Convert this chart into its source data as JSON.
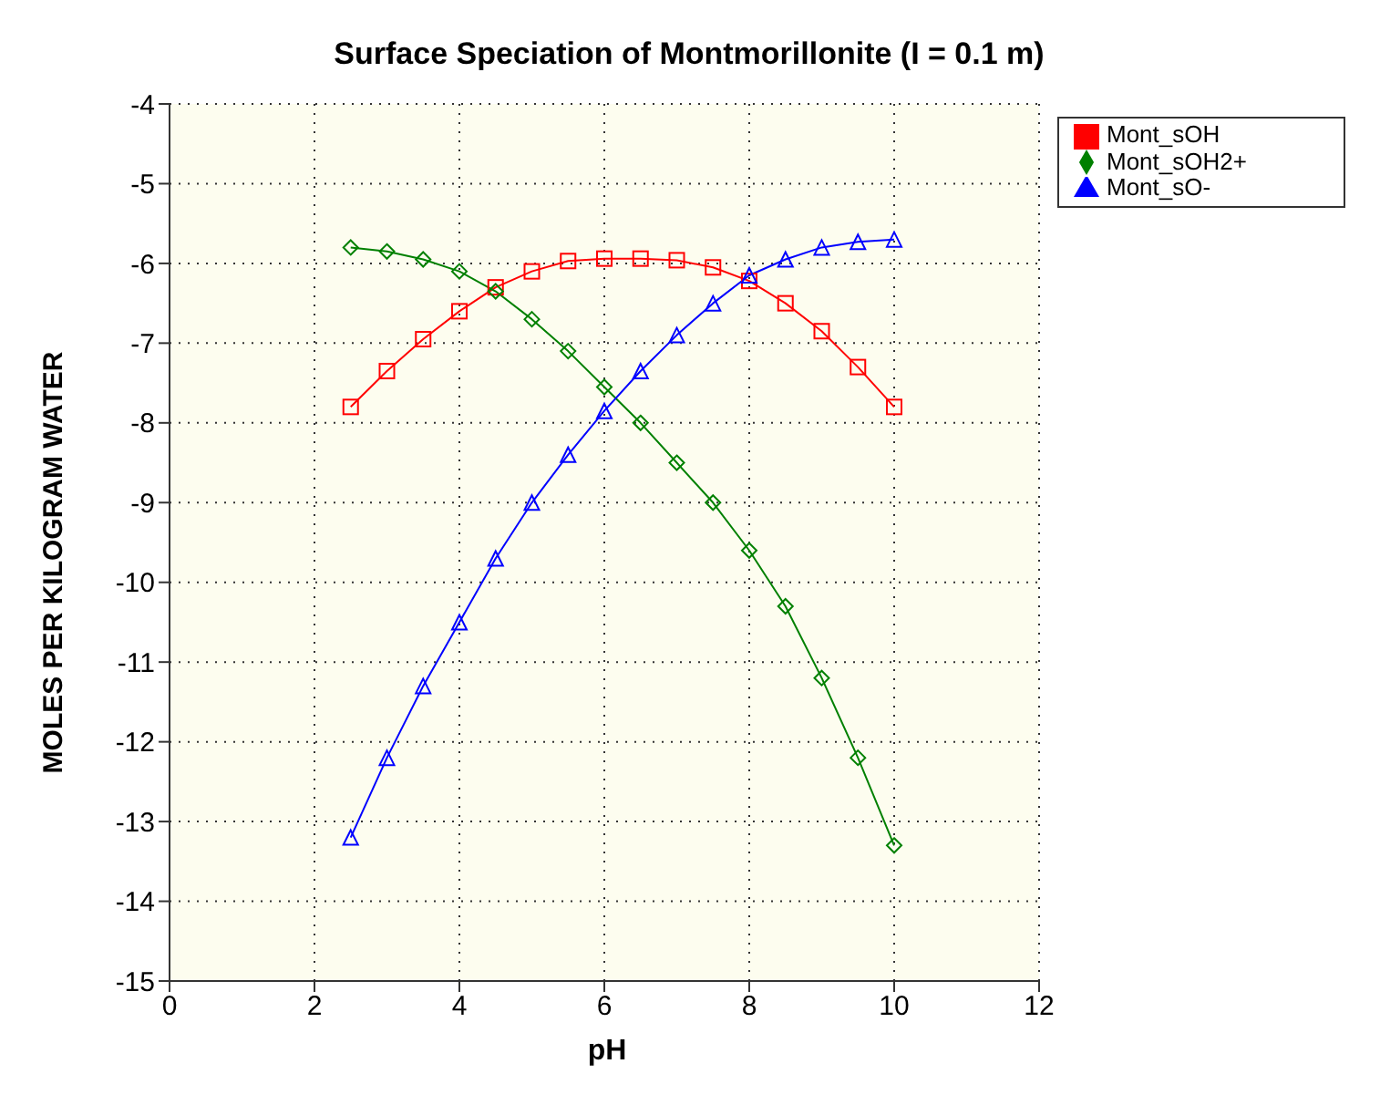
{
  "chart_data": {
    "type": "line",
    "title": "Surface Speciation of Montmorillonite (I = 0.1 m)",
    "xlabel": "pH",
    "ylabel": "MOLES PER KILOGRAM WATER",
    "x": [
      2.5,
      3,
      3.5,
      4,
      4.5,
      5,
      5.5,
      6,
      6.5,
      7,
      7.5,
      8,
      8.5,
      9,
      9.5,
      10
    ],
    "series": [
      {
        "name": "Mont_sOH",
        "color": "#ff0000",
        "marker": "square",
        "values": [
          -7.8,
          -7.35,
          -6.95,
          -6.6,
          -6.3,
          -6.1,
          -5.97,
          -5.94,
          -5.94,
          -5.96,
          -6.05,
          -6.22,
          -6.5,
          -6.85,
          -7.3,
          -7.8
        ]
      },
      {
        "name": "Mont_sOH2+",
        "color": "#008000",
        "marker": "diamond",
        "values": [
          -5.8,
          -5.85,
          -5.95,
          -6.1,
          -6.35,
          -6.7,
          -7.1,
          -7.55,
          -8.0,
          -8.5,
          -9.0,
          -9.6,
          -10.3,
          -11.2,
          -12.2,
          -13.3
        ]
      },
      {
        "name": "Mont_sO-",
        "color": "#0000ff",
        "marker": "triangle",
        "values": [
          -13.2,
          -12.2,
          -11.3,
          -10.5,
          -9.7,
          -9.0,
          -8.4,
          -7.85,
          -7.35,
          -6.9,
          -6.5,
          -6.15,
          -5.95,
          -5.8,
          -5.73,
          -5.7
        ]
      }
    ],
    "xlim": [
      0,
      12
    ],
    "xticks": [
      0,
      2,
      4,
      6,
      8,
      10,
      12
    ],
    "ylim": [
      -15,
      -4
    ],
    "yticks": [
      -15,
      -14,
      -13,
      -12,
      -11,
      -10,
      -9,
      -8,
      -7,
      -6,
      -5,
      -4
    ],
    "grid": true,
    "legend": "top right",
    "line_style": "solid"
  }
}
